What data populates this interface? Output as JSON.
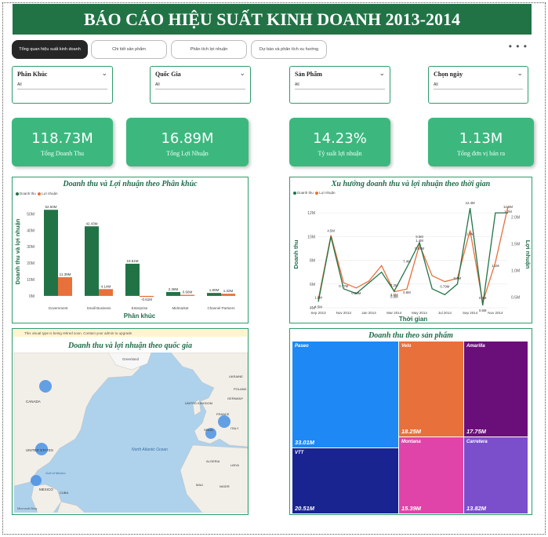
{
  "title": "BÁO CÁO HIỆU SUẤT KINH DOANH 2013-2014",
  "tabs": [
    {
      "label": "Tổng quan hiệu suất kinh doanh",
      "active": true
    },
    {
      "label": "Chi tiết sản phẩm",
      "active": false
    },
    {
      "label": "Phân tích lợi nhuận",
      "active": false
    },
    {
      "label": "Dự báo và phân tích xu hướng",
      "active": false
    }
  ],
  "more_label": "• • •",
  "slicers": [
    {
      "label": "Phân Khúc",
      "value": "All"
    },
    {
      "label": "Quốc Gia",
      "value": "All"
    },
    {
      "label": "Sản Phẩm",
      "value": "All"
    },
    {
      "label": "Chọn ngày",
      "value": "All"
    }
  ],
  "kpis": [
    {
      "value": "118.73M",
      "label": "Tổng Doanh Thu"
    },
    {
      "value": "16.89M",
      "label": "Tổng Lợi Nhuận"
    },
    {
      "value": "14.23%",
      "label": "Tỷ suất lợi nhuận"
    },
    {
      "value": "1.13M",
      "label": "Tổng đơn vị bán ra"
    }
  ],
  "colors": {
    "revenue": "#217346",
    "profit": "#e8703a",
    "accent": "#3cb87f",
    "map_point": "#4a90e2"
  },
  "bar_panel": {
    "title": "Doanh thu và Lợi nhuận theo Phân khúc"
  },
  "line_panel": {
    "title": "Xu hướng doanh thu và lợi nhuận theo thời gian"
  },
  "map_panel": {
    "title": "Doanh thu và lợi nhuận theo quốc gia",
    "warning": "This visual type is being retired soon. Contact your admin to upgrade",
    "labels": [
      "CANADA",
      "UNITED STATES",
      "MEXICO",
      "UNITED KINGDOM",
      "FRANCE",
      "GERMANY",
      "North Atlantic Ocean",
      "Greenland",
      "SPAIN",
      "ITALY",
      "POLAND",
      "UKRAINE",
      "ALGERIA",
      "LIBYA",
      "MALI",
      "NIGER",
      "CUBA",
      "Gulf of Mexico"
    ],
    "attribution": "Microsoft Bing"
  },
  "treemap_panel": {
    "title": "Doanh thu theo sản phẩm",
    "items": [
      {
        "name": "Paseo",
        "value": "33.01M",
        "color": "#1e88f5"
      },
      {
        "name": "Velo",
        "value": "18.25M",
        "color": "#e8703a"
      },
      {
        "name": "Amarilla",
        "value": "17.75M",
        "color": "#6a0f7a"
      },
      {
        "name": "VTT",
        "value": "20.51M",
        "color": "#1a2490"
      },
      {
        "name": "Montana",
        "value": "15.39M",
        "color": "#e044a8"
      },
      {
        "name": "Carretera",
        "value": "13.82M",
        "color": "#7b4fcc"
      }
    ]
  },
  "chart_data": [
    {
      "type": "bar",
      "title": "Doanh thu và Lợi nhuận theo Phân khúc",
      "xlabel": "Phân khúc",
      "ylabel": "Doanh thu và lợi nhuận",
      "categories": [
        "Government",
        "Small Business",
        "Enterprise",
        "Midmarket",
        "Channel Partners"
      ],
      "series": [
        {
          "name": "Doanh thu",
          "values": [
            52.5,
            42.43,
            19.61,
            2.38,
            1.8
          ],
          "labels": [
            "52.50M",
            "42.43M",
            "19.61M",
            "2.38M",
            "1.80M"
          ]
        },
        {
          "name": "Lợi nhuận",
          "values": [
            11.39,
            4.14,
            -0.61,
            0.66,
            1.32
          ],
          "labels": [
            "11.39M",
            "4.14M",
            "-0.61M",
            "0.66M",
            "1.32M"
          ]
        }
      ],
      "yticks": [
        "0M",
        "10M",
        "20M",
        "30M",
        "40M",
        "50M"
      ],
      "ylim": [
        -1,
        55
      ],
      "legend": "top-left"
    },
    {
      "type": "line",
      "title": "Xu hướng doanh thu và lợi nhuận theo thời gian",
      "xlabel": "Thời gian",
      "ylabel": "Doanh thu",
      "y2label": "Lợi nhuận",
      "x": [
        "Sep 2013",
        "Oct 2013",
        "Nov 2013",
        "Dec 2013",
        "Jan 2014",
        "Feb 2014",
        "Mar 2014",
        "Apr 2014",
        "May 2014",
        "Jun 2014",
        "Jul 2014",
        "Aug 2014",
        "Sep 2014",
        "Oct 2014",
        "Nov 2014",
        "Dec 2014"
      ],
      "xticks": [
        "Sep 2013",
        "Nov 2013",
        "Jan 2014",
        "Mar 2014",
        "May 2014",
        "Jul 2014",
        "Sep 2014",
        "Nov 2014"
      ],
      "yticks": [
        "4M",
        "6M",
        "8M",
        "10M",
        "12M"
      ],
      "y2ticks": [
        "0.5M",
        "1.0M",
        "1.5M",
        "2.0M"
      ],
      "ylim": [
        4,
        13
      ],
      "y2lim": [
        0.3,
        2.3
      ],
      "series": [
        {
          "name": "Doanh thu",
          "axis": "y",
          "values": [
            4.5,
            10.0,
            5.6,
            5.2,
            6.1,
            7.0,
            5.4,
            7.4,
            9.5,
            5.6,
            5.1,
            6.0,
            12.4,
            4.2,
            12.0,
            12.0
          ]
        },
        {
          "name": "Lợi nhuận",
          "axis": "y2",
          "values": [
            0.45,
            1.66,
            0.77,
            0.67,
            0.8,
            1.09,
            0.6,
            0.65,
            1.48,
            0.9,
            0.79,
            0.85,
            1.75,
            0.4,
            1.15,
            2.2
          ]
        }
      ],
      "data_labels": [
        "1.6M",
        "4.5M",
        "4.5M",
        "0.77M",
        "0.69M",
        "7.2M",
        "0.8M",
        "7.4M",
        "4.6M",
        "0.6M",
        "0.65M",
        "9.5M",
        "1.4M",
        "0.79M",
        "0.9M",
        "12.4M",
        "1.9M",
        "0.4M",
        "12.0M",
        "0.6M",
        "1.1M",
        "1.2M"
      ],
      "legend": "top-left"
    }
  ]
}
